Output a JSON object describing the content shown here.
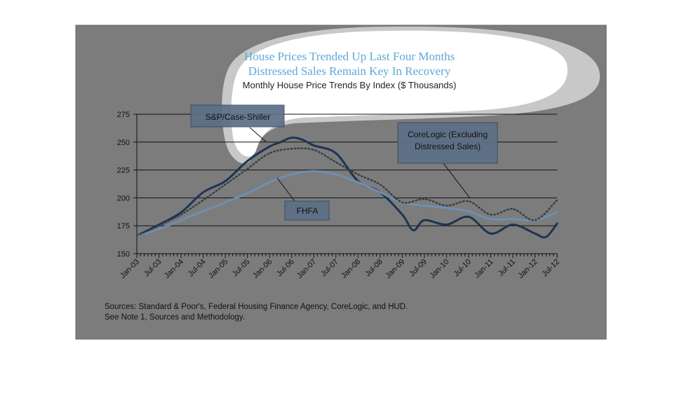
{
  "chart_data": {
    "type": "line",
    "title": "House Prices Trended Up Last Four Months",
    "subtitle": "Distressed Sales Remain Key In Recovery",
    "subtitle2": "Monthly House Price Trends By Index ($ Thousands)",
    "xlabel": "",
    "ylabel": "",
    "ylim": [
      150,
      275
    ],
    "yticks": [
      150,
      175,
      200,
      225,
      250,
      275
    ],
    "grid": true,
    "x_ticks": [
      "Jan-03",
      "Jul-03",
      "Jan-04",
      "Jul-04",
      "Jan-05",
      "Jul-05",
      "Jan-06",
      "Jul-06",
      "Jan-07",
      "Jul-07",
      "Jan-08",
      "Jul-08",
      "Jan-09",
      "Jul-09",
      "Jan-10",
      "Jul-10",
      "Jan-11",
      "Jul-11",
      "Jan-12",
      "Jul-12"
    ],
    "series": [
      {
        "name": "S&P/Case-Shiller",
        "color": "#1e3550",
        "style": "solid",
        "x": [
          "2003-01",
          "2003-07",
          "2004-01",
          "2004-07",
          "2005-01",
          "2005-07",
          "2006-01",
          "2006-04",
          "2006-07",
          "2006-10",
          "2007-01",
          "2007-07",
          "2008-01",
          "2008-07",
          "2009-01",
          "2009-04",
          "2009-07",
          "2010-01",
          "2010-07",
          "2011-01",
          "2011-07",
          "2012-01",
          "2012-04",
          "2012-07"
        ],
        "values": [
          166,
          176,
          187,
          205,
          215,
          233,
          246,
          250,
          254,
          252,
          247,
          240,
          215,
          205,
          185,
          171,
          180,
          176,
          183,
          168,
          176,
          168,
          165,
          177
        ]
      },
      {
        "name": "FHFA",
        "color": "#6e8fb2",
        "style": "solid",
        "x": [
          "2003-01",
          "2003-07",
          "2004-01",
          "2004-07",
          "2005-01",
          "2005-07",
          "2006-01",
          "2006-07",
          "2007-01",
          "2007-07",
          "2008-01",
          "2008-07",
          "2009-01",
          "2009-07",
          "2010-01",
          "2010-07",
          "2011-01",
          "2011-07",
          "2012-01",
          "2012-07"
        ],
        "values": [
          166,
          172,
          180,
          188,
          196,
          204,
          214,
          221,
          224,
          221,
          214,
          205,
          196,
          193,
          191,
          188,
          181,
          181,
          180,
          187
        ]
      },
      {
        "name": "CoreLogic (Excluding Distressed Sales)",
        "color": "#3a3f47",
        "style": "dotted",
        "x": [
          "2003-01",
          "2003-07",
          "2004-01",
          "2004-07",
          "2005-01",
          "2005-07",
          "2006-01",
          "2006-07",
          "2007-01",
          "2007-07",
          "2008-01",
          "2008-07",
          "2009-01",
          "2009-07",
          "2010-01",
          "2010-07",
          "2011-01",
          "2011-07",
          "2012-01",
          "2012-07"
        ],
        "values": [
          166,
          175,
          185,
          198,
          212,
          226,
          240,
          244,
          243,
          232,
          221,
          212,
          196,
          199,
          193,
          197,
          185,
          190,
          180,
          198
        ]
      }
    ],
    "annotations": [
      {
        "label": "S&P/Case-Shiller"
      },
      {
        "label": "CoreLogic (Excluding",
        "label2": "Distressed Sales)"
      },
      {
        "label": "FHFA"
      }
    ]
  },
  "sources": {
    "line1": "Sources:  Standard & Poor's, Federal Housing Finance Agency, CoreLogic, and HUD.",
    "line2": "See Note 1, Sources and Methodology."
  },
  "colors": {
    "panel": "#7c7c7c",
    "highlight_blob": "#ffffff",
    "title": "#5fa8d8"
  }
}
